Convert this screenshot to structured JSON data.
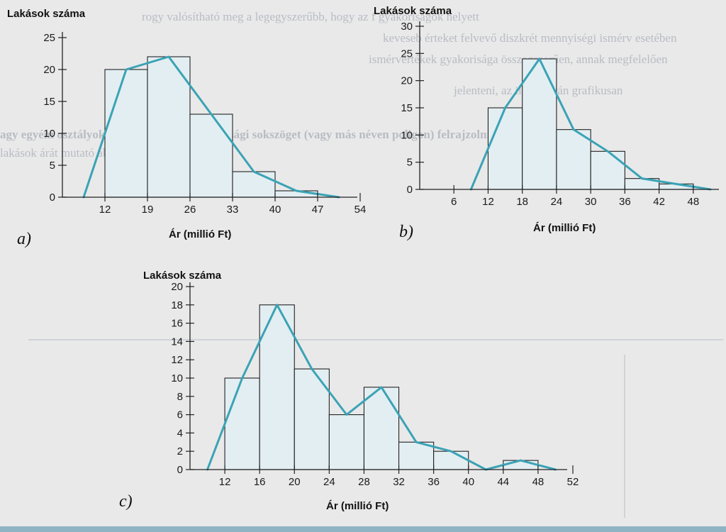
{
  "background_text": [
    "rogy valósítható meg a legegyszerűbb, hogy az f gyakoriságok helyett",
    "keveseb érteket felvevő diszkrét mennyiségi ismérv esetében",
    "ismérvértékek gyakorisága összegszerűen, annak megfelelően",
    "jelenteni, az ilyen ábrán grafikusan",
    "agy egyéni osztályok gyakoriságát, a gyakorisági sokszöget (vagy más néven poligon) felrajzolni",
    "lakások árát mutató ábrázolás"
  ],
  "chart_data": [
    {
      "type": "bar",
      "panel": "a)",
      "ylabel": "Lakások száma",
      "xlabel": "Ár (millió Ft)",
      "ylim": [
        0,
        25
      ],
      "yticks": [
        0,
        5,
        10,
        15,
        20,
        25
      ],
      "xlim": [
        5,
        54
      ],
      "xticks": [
        12,
        19,
        26,
        33,
        40,
        47,
        54
      ],
      "bars": [
        {
          "x0": 12,
          "x1": 19,
          "value": 20
        },
        {
          "x0": 19,
          "x1": 26,
          "value": 22
        },
        {
          "x0": 26,
          "x1": 33,
          "value": 13
        },
        {
          "x0": 33,
          "x1": 40,
          "value": 4
        },
        {
          "x0": 40,
          "x1": 47,
          "value": 1
        },
        {
          "x0": 47,
          "x1": 54,
          "value": 0
        }
      ],
      "polygon": [
        [
          8.5,
          0
        ],
        [
          15.5,
          20
        ],
        [
          22.5,
          22
        ],
        [
          29.5,
          13
        ],
        [
          36.5,
          4
        ],
        [
          43.5,
          1
        ],
        [
          50.5,
          0
        ]
      ]
    },
    {
      "type": "bar",
      "panel": "b)",
      "ylabel": "Lakások száma",
      "xlabel": "Ár (millió Ft)",
      "ylim": [
        0,
        30
      ],
      "yticks": [
        0,
        5,
        10,
        15,
        20,
        25,
        30
      ],
      "xlim": [
        0,
        52
      ],
      "xticks": [
        6,
        12,
        18,
        24,
        30,
        36,
        42,
        48
      ],
      "bars": [
        {
          "x0": 12,
          "x1": 18,
          "value": 15
        },
        {
          "x0": 18,
          "x1": 24,
          "value": 24
        },
        {
          "x0": 24,
          "x1": 30,
          "value": 11
        },
        {
          "x0": 30,
          "x1": 36,
          "value": 7
        },
        {
          "x0": 36,
          "x1": 42,
          "value": 2
        },
        {
          "x0": 42,
          "x1": 48,
          "value": 1
        }
      ],
      "polygon": [
        [
          9,
          0
        ],
        [
          15,
          15
        ],
        [
          21,
          24
        ],
        [
          27,
          11
        ],
        [
          33,
          7
        ],
        [
          39,
          2
        ],
        [
          45,
          1
        ],
        [
          51,
          0
        ]
      ]
    },
    {
      "type": "bar",
      "panel": "c)",
      "ylabel": "Lakások száma",
      "xlabel": "Ár (millió Ft)",
      "ylim": [
        0,
        20
      ],
      "yticks": [
        0,
        2,
        4,
        6,
        8,
        10,
        12,
        14,
        16,
        18,
        20
      ],
      "xlim": [
        8,
        52
      ],
      "xticks": [
        12,
        16,
        20,
        24,
        28,
        32,
        36,
        40,
        44,
        48,
        52
      ],
      "bars": [
        {
          "x0": 12,
          "x1": 16,
          "value": 10
        },
        {
          "x0": 16,
          "x1": 20,
          "value": 18
        },
        {
          "x0": 20,
          "x1": 24,
          "value": 11
        },
        {
          "x0": 24,
          "x1": 28,
          "value": 6
        },
        {
          "x0": 28,
          "x1": 32,
          "value": 9
        },
        {
          "x0": 32,
          "x1": 36,
          "value": 3
        },
        {
          "x0": 36,
          "x1": 40,
          "value": 2
        },
        {
          "x0": 40,
          "x1": 44,
          "value": 0
        },
        {
          "x0": 44,
          "x1": 48,
          "value": 1
        },
        {
          "x0": 48,
          "x1": 52,
          "value": 0
        }
      ],
      "polygon": [
        [
          10,
          0
        ],
        [
          14,
          10
        ],
        [
          18,
          18
        ],
        [
          22,
          11
        ],
        [
          26,
          6
        ],
        [
          30,
          9
        ],
        [
          34,
          3
        ],
        [
          38,
          2
        ],
        [
          42,
          0
        ],
        [
          46,
          1
        ],
        [
          50,
          0
        ]
      ]
    }
  ]
}
